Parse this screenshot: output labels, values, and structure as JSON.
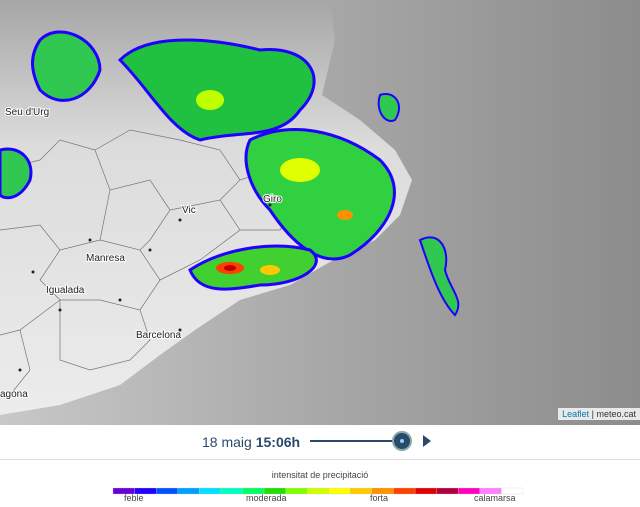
{
  "map": {
    "places": [
      "Seu d'Urg",
      "Vic",
      "Giro",
      "Manresa",
      "Igualada",
      "Barcelona",
      "agona"
    ],
    "attribution": {
      "leaflet": "Leaflet",
      "source": "meteo.cat"
    }
  },
  "timeline": {
    "date": "18 maig",
    "time": "15:06h"
  },
  "legend": {
    "title": "intensitat de precipitació",
    "labels": [
      "feble",
      "moderada",
      "forta",
      "calamarsa"
    ],
    "colors": [
      "#6a00d8",
      "#2000ff",
      "#0050ff",
      "#00a0ff",
      "#00e0ff",
      "#00ffc0",
      "#00ff60",
      "#20e000",
      "#80ff00",
      "#d0ff00",
      "#ffff00",
      "#ffc800",
      "#ff9000",
      "#ff4000",
      "#e00000",
      "#b00040",
      "#ff00c0",
      "#ff80ff",
      "#ffffff"
    ]
  }
}
